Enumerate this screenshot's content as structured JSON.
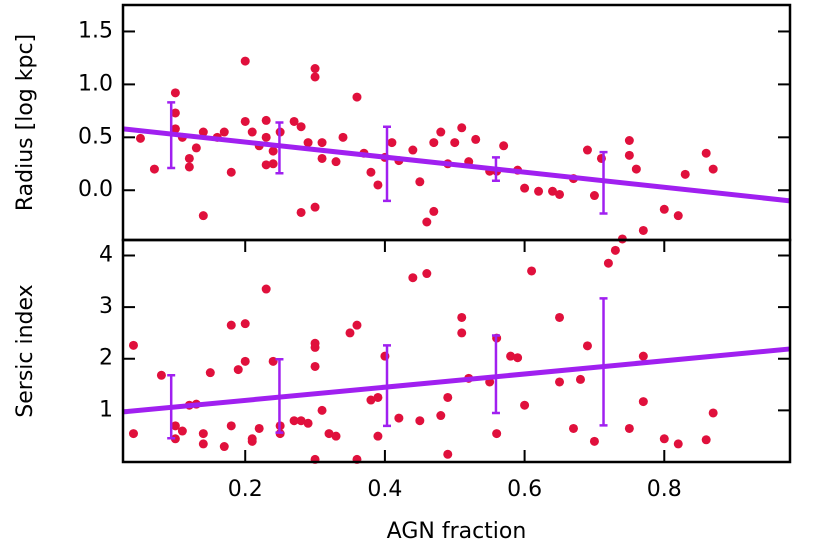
{
  "chart_data": [
    {
      "type": "scatter",
      "ylabel": "Radius [log kpc]",
      "xlim": [
        0.025,
        0.98
      ],
      "ylim": [
        -0.47,
        1.75
      ],
      "yticks": [
        {
          "value": 0,
          "label": "0.0"
        },
        0.5,
        {
          "value": 1,
          "label": "1.0"
        },
        1.5
      ],
      "points": {
        "color": "#e0103c",
        "x": [
          0.05,
          0.1,
          0.1,
          0.1,
          0.11,
          0.07,
          0.12,
          0.12,
          0.13,
          0.14,
          0.14,
          0.16,
          0.17,
          0.18,
          0.2,
          0.2,
          0.21,
          0.22,
          0.23,
          0.23,
          0.23,
          0.24,
          0.24,
          0.25,
          0.27,
          0.28,
          0.28,
          0.29,
          0.3,
          0.3,
          0.3,
          0.31,
          0.31,
          0.33,
          0.34,
          0.36,
          0.37,
          0.38,
          0.39,
          0.4,
          0.41,
          0.42,
          0.44,
          0.45,
          0.46,
          0.47,
          0.47,
          0.48,
          0.49,
          0.5,
          0.51,
          0.52,
          0.53,
          0.55,
          0.56,
          0.57,
          0.59,
          0.6,
          0.62,
          0.64,
          0.65,
          0.67,
          0.69,
          0.7,
          0.71,
          0.74,
          0.75,
          0.75,
          0.76,
          0.77,
          0.8,
          0.82,
          0.83,
          0.86,
          0.87
        ],
        "y": [
          0.49,
          0.92,
          0.73,
          0.58,
          0.5,
          0.2,
          0.3,
          0.22,
          0.4,
          0.55,
          -0.24,
          0.5,
          0.55,
          0.17,
          1.22,
          0.65,
          0.55,
          0.42,
          0.66,
          0.5,
          0.24,
          0.37,
          0.25,
          0.55,
          0.65,
          0.6,
          -0.21,
          0.45,
          1.15,
          1.07,
          -0.16,
          0.45,
          0.3,
          0.27,
          0.5,
          0.88,
          0.35,
          0.17,
          0.05,
          0.31,
          0.45,
          0.28,
          0.38,
          0.08,
          -0.3,
          -0.2,
          0.45,
          0.55,
          0.25,
          0.45,
          0.59,
          0.27,
          0.48,
          0.18,
          0.18,
          0.42,
          0.19,
          0.02,
          -0.01,
          -0.01,
          -0.04,
          0.11,
          0.38,
          -0.05,
          0.3,
          -0.46,
          0.47,
          0.33,
          0.2,
          -0.38,
          -0.18,
          -0.24,
          0.15,
          0.35,
          0.2
        ]
      },
      "fit": {
        "color": "#a020f0",
        "x": [
          0.025,
          0.98
        ],
        "y": [
          0.58,
          -0.1
        ]
      },
      "errorbars": {
        "color": "#a020f0",
        "x": [
          0.094,
          0.249,
          0.403,
          0.559,
          0.713
        ],
        "y": [
          0.52,
          0.4,
          0.25,
          0.2,
          0.07
        ],
        "err": [
          0.31,
          0.24,
          0.35,
          0.11,
          0.29
        ]
      }
    },
    {
      "type": "scatter",
      "ylabel": "Sersic index",
      "xlabel": "AGN fraction",
      "xlim": [
        0.025,
        0.98
      ],
      "ylim": [
        0,
        4.3
      ],
      "xticks": [
        0.2,
        0.4,
        0.6,
        0.8
      ],
      "yticks": [
        1,
        2,
        3,
        4
      ],
      "points": {
        "color": "#e0103c",
        "x": [
          0.04,
          0.04,
          0.08,
          0.1,
          0.1,
          0.11,
          0.12,
          0.13,
          0.14,
          0.14,
          0.15,
          0.17,
          0.18,
          0.18,
          0.19,
          0.2,
          0.2,
          0.21,
          0.21,
          0.22,
          0.23,
          0.24,
          0.25,
          0.25,
          0.27,
          0.28,
          0.29,
          0.3,
          0.3,
          0.3,
          0.3,
          0.31,
          0.32,
          0.33,
          0.35,
          0.36,
          0.36,
          0.38,
          0.39,
          0.39,
          0.4,
          0.42,
          0.44,
          0.45,
          0.46,
          0.48,
          0.49,
          0.49,
          0.51,
          0.51,
          0.52,
          0.55,
          0.56,
          0.56,
          0.58,
          0.59,
          0.6,
          0.61,
          0.65,
          0.65,
          0.67,
          0.68,
          0.69,
          0.7,
          0.72,
          0.73,
          0.75,
          0.77,
          0.77,
          0.8,
          0.82,
          0.86,
          0.87
        ],
        "y": [
          0.55,
          2.26,
          1.68,
          0.45,
          0.7,
          0.6,
          1.1,
          1.12,
          0.55,
          0.35,
          1.73,
          0.3,
          0.7,
          2.65,
          1.79,
          1.95,
          2.68,
          0.4,
          0.45,
          0.65,
          3.35,
          1.95,
          0.55,
          0.7,
          0.8,
          0.8,
          0.75,
          2.3,
          2.22,
          1.85,
          0.05,
          1.0,
          0.55,
          0.5,
          2.5,
          2.65,
          0.05,
          1.2,
          1.25,
          0.5,
          2.05,
          0.85,
          3.57,
          0.8,
          3.65,
          0.9,
          1.25,
          0.15,
          2.8,
          2.5,
          1.62,
          1.55,
          2.4,
          0.55,
          2.05,
          2.02,
          1.1,
          3.7,
          1.55,
          2.8,
          0.65,
          1.6,
          2.25,
          0.4,
          3.85,
          4.1,
          0.65,
          1.17,
          2.05,
          0.45,
          0.35,
          0.43,
          0.95
        ]
      },
      "fit": {
        "color": "#a020f0",
        "x": [
          0.025,
          0.98
        ],
        "y": [
          0.97,
          2.19
        ]
      },
      "errorbars": {
        "color": "#a020f0",
        "x": [
          0.094,
          0.249,
          0.403,
          0.559,
          0.713
        ],
        "y": [
          1.07,
          1.28,
          1.48,
          1.7,
          1.94
        ],
        "err": [
          0.61,
          0.71,
          0.78,
          0.75,
          1.23
        ]
      }
    }
  ]
}
